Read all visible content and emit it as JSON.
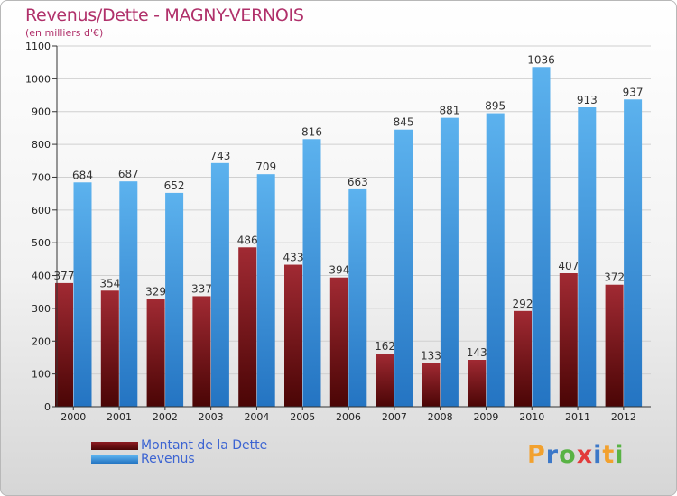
{
  "title": "Revenus/Dette - MAGNY-VERNOIS",
  "subtitle": "(en milliers d'€)",
  "chart_data": {
    "type": "bar",
    "title": "Revenus/Dette - MAGNY-VERNOIS",
    "subtitle": "(en milliers d'€)",
    "categories": [
      "2000",
      "2001",
      "2002",
      "2003",
      "2004",
      "2005",
      "2006",
      "2007",
      "2008",
      "2009",
      "2010",
      "2011",
      "2012"
    ],
    "series": [
      {
        "name": "Montant de la Dette",
        "color": "#7a1a1f",
        "values": [
          377,
          354,
          329,
          337,
          486,
          433,
          394,
          162,
          133,
          143,
          292,
          407,
          372
        ]
      },
      {
        "name": "Revenus",
        "color": "#4ba3e3",
        "values": [
          684,
          687,
          652,
          743,
          709,
          816,
          663,
          845,
          881,
          895,
          1036,
          913,
          937
        ]
      }
    ],
    "ylim": [
      0,
      1100
    ],
    "yticks": [
      0,
      100,
      200,
      300,
      400,
      500,
      600,
      700,
      800,
      900,
      1000,
      1100
    ],
    "grid": true,
    "legend": "bottom-left"
  },
  "legend": {
    "items": [
      {
        "label": "Montant de la Dette",
        "color": "#6b0f14"
      },
      {
        "label": "Revenus",
        "color": "#4ba3e3"
      }
    ]
  },
  "logo": {
    "text": [
      "P",
      "r",
      "o",
      "x",
      "i",
      "t",
      "i"
    ],
    "colors": [
      "#f2a12e",
      "#3c78c8",
      "#59b345",
      "#e23b3b",
      "#3c78c8",
      "#f2a12e",
      "#59b345"
    ]
  }
}
